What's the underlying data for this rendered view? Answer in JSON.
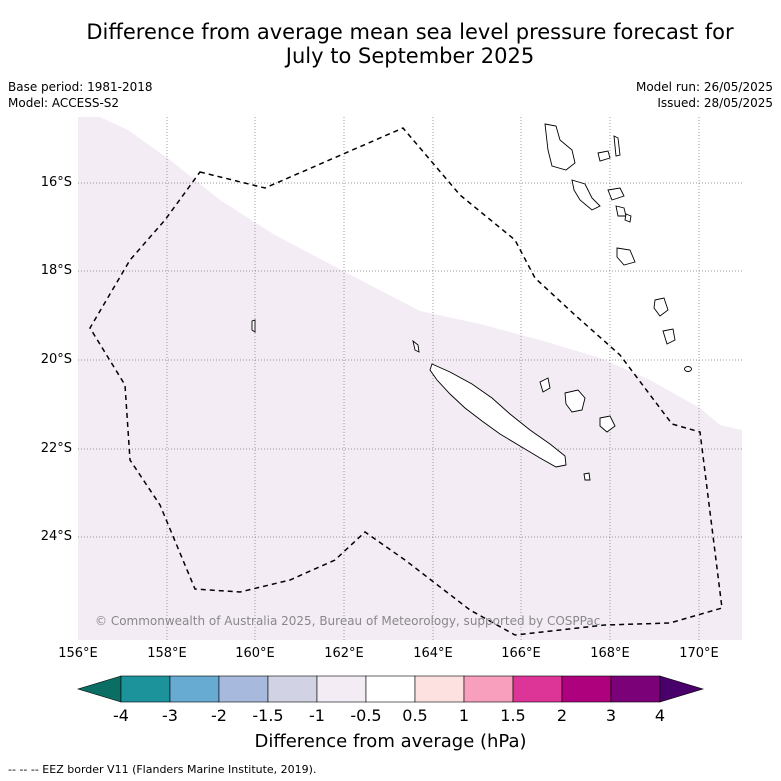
{
  "title_line1": "Difference from average mean sea level pressure forecast for",
  "title_line2": "July to September 2025",
  "meta_left": [
    "Base period: 1981-2018",
    "Model: ACCESS-S2"
  ],
  "meta_right": [
    "Model run: 26/05/2025",
    "Issued: 28/05/2025"
  ],
  "map": {
    "lat_labels": [
      "16°S",
      "18°S",
      "20°S",
      "22°S",
      "24°S"
    ],
    "lon_labels": [
      "156°E",
      "158°E",
      "160°E",
      "162°E",
      "164°E",
      "166°E",
      "168°E",
      "170°E"
    ],
    "shading_category": "-1 to -0.5 hPa",
    "shading_color": "#f3ecf5",
    "eez_line_style": "dashed",
    "copyright": "© Commonwealth of Australia 2025, Bureau of Meteorology, supported by COSPPac"
  },
  "colorbar": {
    "tick_labels": [
      "-4",
      "-3",
      "-2",
      "-1.5",
      "-1",
      "-0.5",
      "0.5",
      "1",
      "1.5",
      "2",
      "3",
      "4"
    ],
    "colors": [
      "#0b6e64",
      "#1c929b",
      "#67aad2",
      "#a7b9dc",
      "#d1d3e5",
      "#f3ecf5",
      "#ffffff",
      "#fde0e0",
      "#f79fbc",
      "#dd3497",
      "#ae017e",
      "#7a0177",
      "#49006a"
    ],
    "title": "Difference from average (hPa)"
  },
  "footnote": "-- -- -- EEZ border V11 (Flanders Marine Institute, 2019)."
}
